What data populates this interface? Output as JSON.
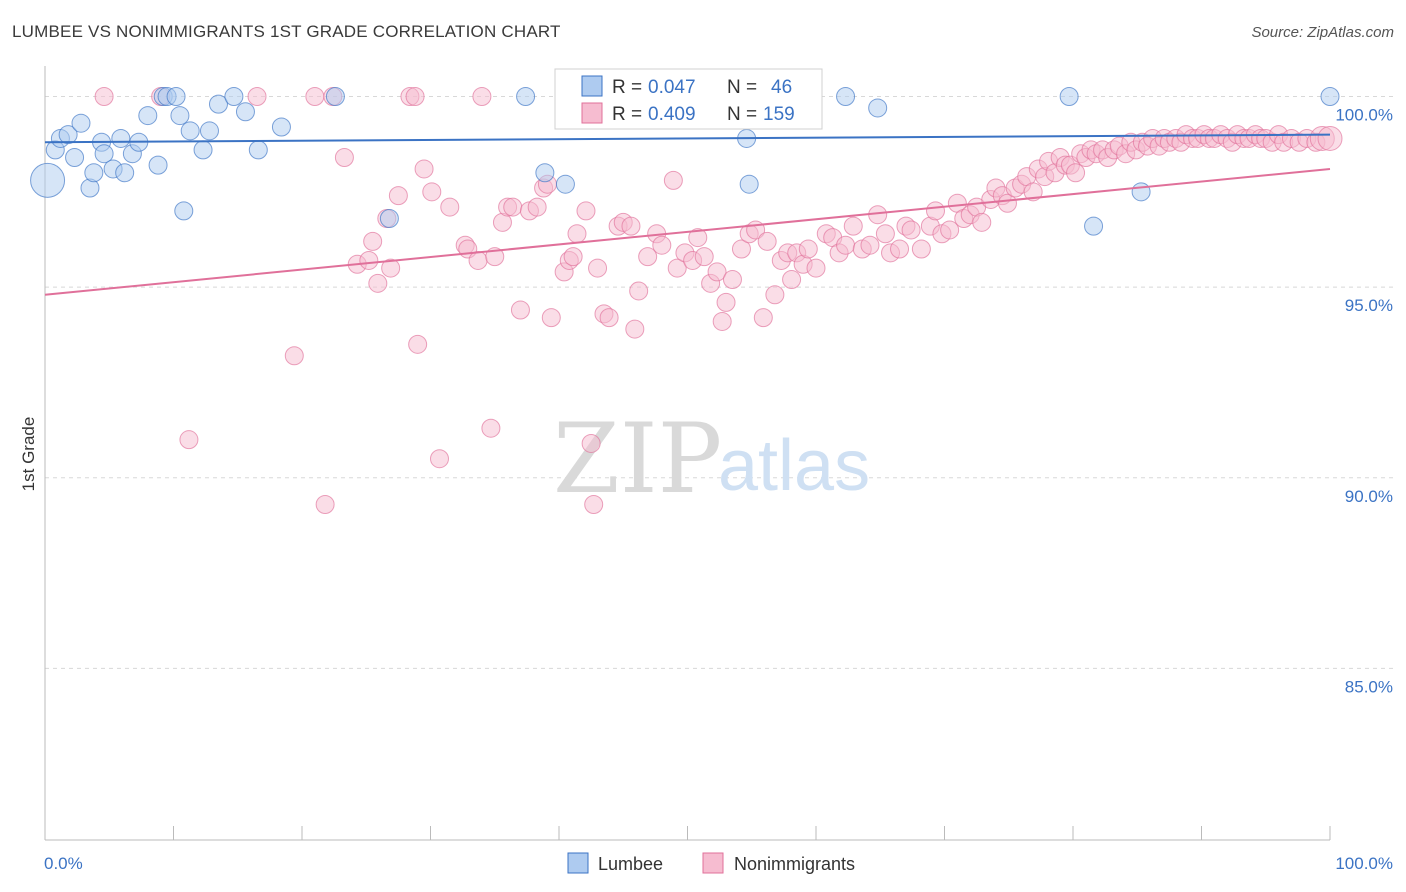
{
  "title": "LUMBEE VS NONIMMIGRANTS 1ST GRADE CORRELATION CHART",
  "source": "Source: ZipAtlas.com",
  "watermark": {
    "zip": "ZIP",
    "atlas": "atlas"
  },
  "colors": {
    "lumbee": "#3b73c4",
    "lumbee_fill": "#aecbf0",
    "nonimm": "#e0709a",
    "nonimm_fill": "#f6bcd0",
    "grid": "#d8d8d8",
    "tick_text": "#3b73c4"
  },
  "legend": {
    "rows": [
      {
        "r_label": "R = ",
        "r_value": "0.047",
        "n_label": "N = ",
        "n_value": "46"
      },
      {
        "r_label": "R = ",
        "r_value": "0.409",
        "n_label": "N = ",
        "n_value": "159"
      }
    ]
  },
  "chart_data": {
    "type": "scatter",
    "title": "LUMBEE VS NONIMMIGRANTS 1ST GRADE CORRELATION CHART",
    "xlabel": "",
    "ylabel": "1st Grade",
    "xlim": [
      0,
      100
    ],
    "ylim": [
      80.5,
      100.8
    ],
    "x_tick_labels": [
      "0.0%",
      "100.0%"
    ],
    "y_ticks": [
      100,
      95,
      90,
      85
    ],
    "y_tick_labels": [
      "100.0%",
      "95.0%",
      "90.0%",
      "85.0%"
    ],
    "grid": true,
    "legend_position": "bottom",
    "series": [
      {
        "name": "Lumbee",
        "trend": [
          [
            0,
            98.8
          ],
          [
            100,
            99.0
          ]
        ],
        "points": [
          [
            0.2,
            97.8
          ],
          [
            0.8,
            98.6
          ],
          [
            1.2,
            98.9
          ],
          [
            1.8,
            99.0
          ],
          [
            2.3,
            98.4
          ],
          [
            2.8,
            99.3
          ],
          [
            3.5,
            97.6
          ],
          [
            3.8,
            98.0
          ],
          [
            4.4,
            98.8
          ],
          [
            4.6,
            98.5
          ],
          [
            5.3,
            98.1
          ],
          [
            5.9,
            98.9
          ],
          [
            6.2,
            98.0
          ],
          [
            6.8,
            98.5
          ],
          [
            7.3,
            98.8
          ],
          [
            8.0,
            99.5
          ],
          [
            8.8,
            98.2
          ],
          [
            9.2,
            100.0
          ],
          [
            9.5,
            100.0
          ],
          [
            10.2,
            100.0
          ],
          [
            10.5,
            99.5
          ],
          [
            10.8,
            97.0
          ],
          [
            11.3,
            99.1
          ],
          [
            12.3,
            98.6
          ],
          [
            12.8,
            99.1
          ],
          [
            13.5,
            99.8
          ],
          [
            14.7,
            100.0
          ],
          [
            15.6,
            99.6
          ],
          [
            16.6,
            98.6
          ],
          [
            18.4,
            99.2
          ],
          [
            22.6,
            100.0
          ],
          [
            26.8,
            96.8
          ],
          [
            37.4,
            100.0
          ],
          [
            38.9,
            98.0
          ],
          [
            40.5,
            97.7
          ],
          [
            50.3,
            100.0
          ],
          [
            54.6,
            98.9
          ],
          [
            54.8,
            97.7
          ],
          [
            62.3,
            100.0
          ],
          [
            64.8,
            99.7
          ],
          [
            79.7,
            100.0
          ],
          [
            81.6,
            96.6
          ],
          [
            85.3,
            97.5
          ],
          [
            100.0,
            100.0
          ]
        ]
      },
      {
        "name": "Nonimmigrants",
        "trend": [
          [
            0,
            94.8
          ],
          [
            100,
            98.1
          ]
        ],
        "points": [
          [
            4.6,
            100.0
          ],
          [
            9.0,
            100.0
          ],
          [
            11.2,
            91.0
          ],
          [
            16.5,
            100.0
          ],
          [
            19.4,
            93.2
          ],
          [
            21.0,
            100.0
          ],
          [
            21.8,
            89.3
          ],
          [
            22.4,
            100.0
          ],
          [
            23.3,
            98.4
          ],
          [
            24.3,
            95.6
          ],
          [
            25.2,
            95.7
          ],
          [
            25.5,
            96.2
          ],
          [
            25.9,
            95.1
          ],
          [
            26.6,
            96.8
          ],
          [
            26.9,
            95.5
          ],
          [
            27.5,
            97.4
          ],
          [
            28.4,
            100.0
          ],
          [
            28.8,
            100.0
          ],
          [
            29.5,
            98.1
          ],
          [
            29.0,
            93.5
          ],
          [
            30.1,
            97.5
          ],
          [
            30.7,
            90.5
          ],
          [
            31.5,
            97.1
          ],
          [
            32.7,
            96.1
          ],
          [
            32.9,
            96.0
          ],
          [
            33.7,
            95.7
          ],
          [
            34.0,
            100.0
          ],
          [
            34.7,
            91.3
          ],
          [
            35.0,
            95.8
          ],
          [
            35.6,
            96.7
          ],
          [
            36.0,
            97.1
          ],
          [
            36.4,
            97.1
          ],
          [
            37.0,
            94.4
          ],
          [
            37.7,
            97.0
          ],
          [
            38.3,
            97.1
          ],
          [
            38.8,
            97.6
          ],
          [
            39.1,
            97.7
          ],
          [
            39.4,
            94.2
          ],
          [
            40.4,
            95.4
          ],
          [
            40.8,
            95.7
          ],
          [
            41.1,
            95.8
          ],
          [
            41.4,
            96.4
          ],
          [
            42.1,
            97.0
          ],
          [
            42.5,
            90.9
          ],
          [
            42.7,
            89.3
          ],
          [
            43.0,
            95.5
          ],
          [
            43.5,
            94.3
          ],
          [
            43.9,
            94.2
          ],
          [
            44.6,
            96.6
          ],
          [
            45.0,
            96.7
          ],
          [
            45.6,
            96.6
          ],
          [
            45.9,
            93.9
          ],
          [
            46.2,
            94.9
          ],
          [
            46.9,
            95.8
          ],
          [
            47.6,
            96.4
          ],
          [
            48.0,
            96.1
          ],
          [
            48.9,
            97.8
          ],
          [
            49.2,
            95.5
          ],
          [
            49.8,
            95.9
          ],
          [
            50.4,
            95.7
          ],
          [
            50.8,
            96.3
          ],
          [
            51.3,
            95.8
          ],
          [
            51.8,
            95.1
          ],
          [
            52.3,
            95.4
          ],
          [
            52.7,
            94.1
          ],
          [
            53.0,
            94.6
          ],
          [
            53.5,
            95.2
          ],
          [
            54.2,
            96.0
          ],
          [
            54.8,
            96.4
          ],
          [
            55.3,
            96.5
          ],
          [
            55.9,
            94.2
          ],
          [
            56.2,
            96.2
          ],
          [
            56.8,
            94.8
          ],
          [
            57.3,
            95.7
          ],
          [
            57.8,
            95.9
          ],
          [
            58.1,
            95.2
          ],
          [
            58.5,
            95.9
          ],
          [
            59.0,
            95.6
          ],
          [
            59.4,
            96.0
          ],
          [
            60.0,
            95.5
          ],
          [
            60.8,
            96.4
          ],
          [
            61.3,
            96.3
          ],
          [
            61.8,
            95.9
          ],
          [
            62.3,
            96.1
          ],
          [
            62.9,
            96.6
          ],
          [
            63.6,
            96.0
          ],
          [
            64.2,
            96.1
          ],
          [
            64.8,
            96.9
          ],
          [
            65.4,
            96.4
          ],
          [
            65.8,
            95.9
          ],
          [
            66.5,
            96.0
          ],
          [
            67.0,
            96.6
          ],
          [
            67.4,
            96.5
          ],
          [
            68.2,
            96.0
          ],
          [
            68.9,
            96.6
          ],
          [
            69.3,
            97.0
          ],
          [
            69.8,
            96.4
          ],
          [
            70.4,
            96.5
          ],
          [
            71.0,
            97.2
          ],
          [
            71.5,
            96.8
          ],
          [
            72.0,
            96.9
          ],
          [
            72.5,
            97.1
          ],
          [
            72.9,
            96.7
          ],
          [
            73.6,
            97.3
          ],
          [
            74.0,
            97.6
          ],
          [
            74.5,
            97.4
          ],
          [
            74.9,
            97.2
          ],
          [
            75.5,
            97.6
          ],
          [
            76.0,
            97.7
          ],
          [
            76.4,
            97.9
          ],
          [
            76.9,
            97.5
          ],
          [
            77.3,
            98.1
          ],
          [
            77.8,
            97.9
          ],
          [
            78.1,
            98.3
          ],
          [
            78.6,
            98.0
          ],
          [
            79.0,
            98.4
          ],
          [
            79.4,
            98.2
          ],
          [
            79.8,
            98.2
          ],
          [
            80.2,
            98.0
          ],
          [
            80.6,
            98.5
          ],
          [
            81.0,
            98.4
          ],
          [
            81.4,
            98.6
          ],
          [
            81.8,
            98.5
          ],
          [
            82.3,
            98.6
          ],
          [
            82.7,
            98.4
          ],
          [
            83.2,
            98.6
          ],
          [
            83.6,
            98.7
          ],
          [
            84.1,
            98.5
          ],
          [
            84.5,
            98.8
          ],
          [
            84.9,
            98.6
          ],
          [
            85.4,
            98.8
          ],
          [
            85.8,
            98.7
          ],
          [
            86.2,
            98.9
          ],
          [
            86.7,
            98.7
          ],
          [
            87.1,
            98.9
          ],
          [
            87.5,
            98.8
          ],
          [
            88.0,
            98.9
          ],
          [
            88.4,
            98.8
          ],
          [
            88.8,
            99.0
          ],
          [
            89.3,
            98.9
          ],
          [
            89.7,
            98.9
          ],
          [
            90.2,
            99.0
          ],
          [
            90.6,
            98.9
          ],
          [
            91.0,
            98.9
          ],
          [
            91.5,
            99.0
          ],
          [
            92.0,
            98.9
          ],
          [
            92.4,
            98.8
          ],
          [
            92.8,
            99.0
          ],
          [
            93.3,
            98.9
          ],
          [
            93.7,
            98.9
          ],
          [
            94.2,
            99.0
          ],
          [
            94.6,
            98.9
          ],
          [
            95.0,
            98.9
          ],
          [
            95.5,
            98.8
          ],
          [
            96.0,
            99.0
          ],
          [
            96.4,
            98.8
          ],
          [
            97.0,
            98.9
          ],
          [
            97.6,
            98.8
          ],
          [
            98.2,
            98.9
          ],
          [
            98.9,
            98.8
          ],
          [
            99.4,
            98.9
          ],
          [
            100.0,
            98.9
          ]
        ]
      }
    ]
  },
  "bottom_legend": [
    {
      "label": "Lumbee"
    },
    {
      "label": "Nonimmigrants"
    }
  ]
}
